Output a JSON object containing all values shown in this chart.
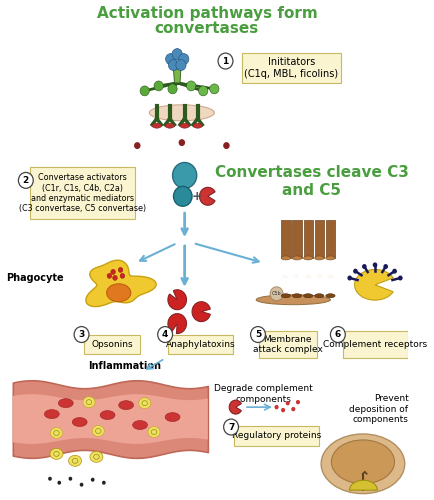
{
  "title1": "Activation pathways form",
  "title2": "convertases",
  "title_color": "#4a9e3f",
  "subtitle": "Convertases cleave C3\nand C5",
  "subtitle_color": "#4a9e3f",
  "bg_color": "#ffffff",
  "box_facecolor": "#faf5d0",
  "box_edgecolor": "#c8b860",
  "label1": "Inititators\n(C1q, MBL, ficolins)",
  "label2": "Convertase activators\n(C1r, C1s, C4b, C2a)\nand enzymatic mediators\n(C3 convertase, C5 convertase)",
  "label3": "Opsonins",
  "label4": "Anaphylatoxins",
  "label5": "Membrane\nattack complex",
  "label6": "Complement receptors",
  "label7": "Regulatory proteins",
  "label_inflammation": "Inflammation",
  "label_degrade": "Degrade complement\ncomponents",
  "label_prevent": "Prevent\ndeposition of\ncomponents",
  "label_phagocyte": "Phagocyte",
  "arrow_color": "#6ab0d4",
  "circle_fc": "#ffffff",
  "circle_ec": "#444444",
  "green_dark": "#2d5a1e",
  "green_light": "#7ab648",
  "green_mid": "#4a8a3a",
  "blue_sphere": "#4a8ab8",
  "teal_big": "#3a9aaa",
  "teal_small": "#2a7a8a",
  "red_frag": "#cc3333",
  "dark_red_dot": "#882222",
  "yellow_cell": "#f0c830",
  "orange_nuc": "#e07820",
  "brown_mac": "#9a6030",
  "brown_mac_light": "#c08040",
  "tan_membrane": "#d4a870",
  "tan_dark": "#c09060",
  "vessel_pink": "#dc8878",
  "vessel_dark": "#c06858",
  "navy": "#1a1a5a"
}
